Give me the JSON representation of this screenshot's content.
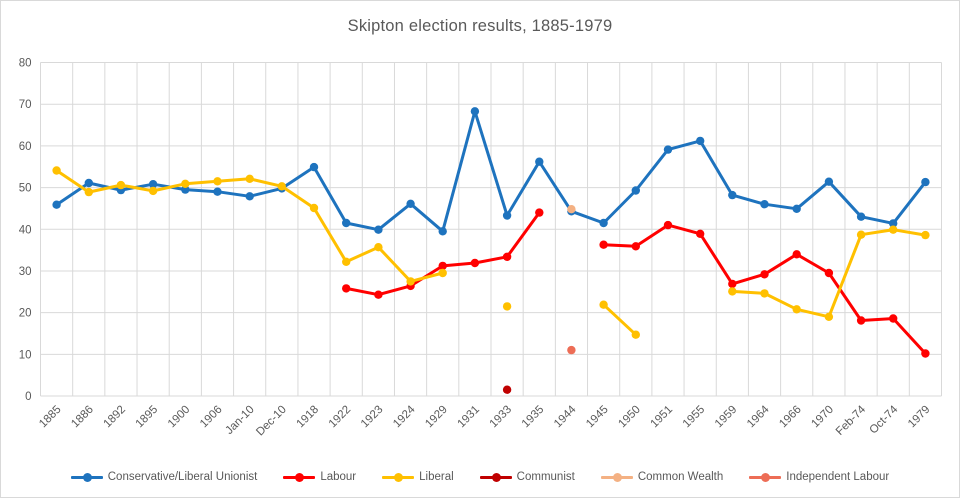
{
  "title": "Skipton election results, 1885-1979",
  "colors": {
    "grid": "#d9d9d9",
    "axis_text": "#595959",
    "title_text": "#595959",
    "background": "#ffffff",
    "border": "#d9d9d9"
  },
  "chart_data": {
    "type": "line",
    "title": "Skipton election results, 1885-1979",
    "xlabel": "",
    "ylabel": "",
    "ylim": [
      0,
      80
    ],
    "yticks": [
      0,
      10,
      20,
      30,
      40,
      50,
      60,
      70,
      80
    ],
    "grid": true,
    "legend_position": "bottom",
    "marker": "circle",
    "categories": [
      "1885",
      "1886",
      "1892",
      "1895",
      "1900",
      "1906",
      "Jan-10",
      "Dec-10",
      "1918",
      "1922",
      "1923",
      "1924",
      "1929",
      "1931",
      "1933",
      "1935",
      "1944",
      "1945",
      "1950",
      "1951",
      "1955",
      "1959",
      "1964",
      "1966",
      "1970",
      "Feb-74",
      "Oct-74",
      "1979"
    ],
    "series": [
      {
        "name": "Conservative/Liberal Unionist",
        "color": "#1e73be",
        "values": [
          45.9,
          51.1,
          49.4,
          50.8,
          49.5,
          49.0,
          47.9,
          49.8,
          54.9,
          41.5,
          39.9,
          46.1,
          39.5,
          68.3,
          43.3,
          56.2,
          44.3,
          41.5,
          49.3,
          59.1,
          61.2,
          48.2,
          46.0,
          44.9,
          51.4,
          43.0,
          41.4,
          51.3
        ]
      },
      {
        "name": "Labour",
        "color": "#ff0000",
        "values": [
          null,
          null,
          null,
          null,
          null,
          null,
          null,
          null,
          null,
          25.8,
          24.3,
          26.4,
          31.2,
          31.9,
          33.4,
          44.0,
          null,
          36.3,
          35.9,
          41.0,
          38.9,
          26.9,
          29.2,
          34.0,
          29.5,
          18.1,
          18.6,
          10.2
        ]
      },
      {
        "name": "Liberal",
        "color": "#ffc000",
        "values": [
          54.1,
          48.9,
          50.6,
          49.2,
          50.9,
          51.5,
          52.1,
          50.3,
          45.1,
          32.2,
          35.7,
          27.5,
          29.5,
          null,
          21.5,
          null,
          null,
          21.9,
          14.7,
          null,
          null,
          25.1,
          24.6,
          20.8,
          19.0,
          38.7,
          39.9,
          38.6
        ]
      },
      {
        "name": "Communist",
        "color": "#c00000",
        "values": [
          null,
          null,
          null,
          null,
          null,
          null,
          null,
          null,
          null,
          null,
          null,
          null,
          null,
          null,
          1.5,
          null,
          null,
          null,
          null,
          null,
          null,
          null,
          null,
          null,
          null,
          null,
          null,
          null
        ]
      },
      {
        "name": "Common Wealth",
        "color": "#f4b183",
        "values": [
          null,
          null,
          null,
          null,
          null,
          null,
          null,
          null,
          null,
          null,
          null,
          null,
          null,
          null,
          null,
          null,
          44.8,
          null,
          null,
          null,
          null,
          null,
          null,
          null,
          null,
          null,
          null,
          null
        ]
      },
      {
        "name": "Independent Labour",
        "color": "#ed6d56",
        "values": [
          null,
          null,
          null,
          null,
          null,
          null,
          null,
          null,
          null,
          null,
          null,
          null,
          null,
          null,
          null,
          null,
          11.0,
          null,
          null,
          null,
          null,
          null,
          null,
          null,
          null,
          null,
          null,
          null
        ]
      }
    ]
  }
}
